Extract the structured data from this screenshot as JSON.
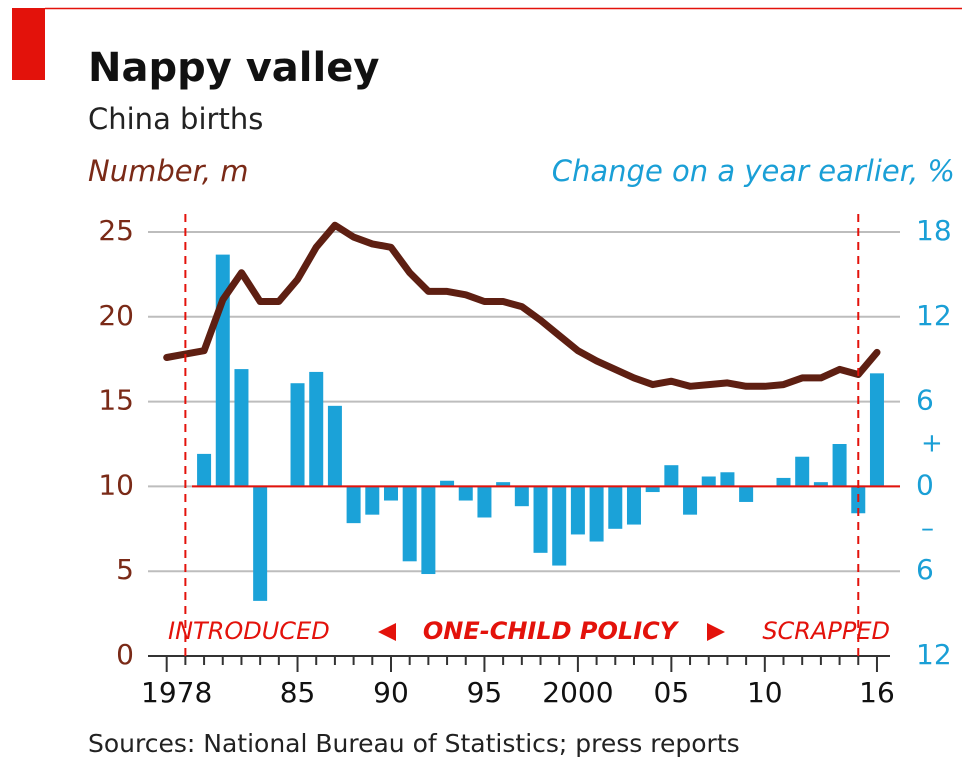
{
  "chart_data": {
    "type": "line_bar",
    "title": "Nappy valley",
    "subtitle": "China births",
    "ylabel": "Number, m",
    "y2label": "Change on a year earlier, %",
    "source": "Sources: National Bureau of Statistics; press reports",
    "x": [
      1978,
      1979,
      1980,
      1981,
      1982,
      1983,
      1984,
      1985,
      1986,
      1987,
      1988,
      1989,
      1990,
      1991,
      1992,
      1993,
      1994,
      1995,
      1996,
      1997,
      1998,
      1999,
      2000,
      2001,
      2002,
      2003,
      2004,
      2005,
      2006,
      2007,
      2008,
      2009,
      2010,
      2011,
      2012,
      2013,
      2014,
      2015,
      2016
    ],
    "series": [
      {
        "type": "line",
        "color": "#5e1f12",
        "values": [
          17.6,
          17.8,
          18.0,
          21.0,
          22.6,
          20.9,
          20.9,
          22.2,
          24.1,
          25.4,
          24.7,
          24.3,
          24.1,
          22.6,
          21.5,
          21.5,
          21.3,
          20.9,
          20.9,
          20.6,
          19.8,
          18.9,
          18.0,
          17.4,
          16.9,
          16.4,
          16.0,
          16.2,
          15.9,
          16.0,
          16.1,
          15.9,
          15.9,
          16.0,
          16.4,
          16.4,
          16.9,
          16.6,
          17.9
        ]
      },
      {
        "type": "bar",
        "axis": "y2",
        "color": "#1ba2d8",
        "values": [
          null,
          null,
          2.3,
          16.4,
          8.3,
          -8.1,
          null,
          7.3,
          8.1,
          5.7,
          -2.6,
          -2.0,
          -1.0,
          -5.3,
          -6.2,
          0.4,
          -1.0,
          -2.2,
          0.3,
          -1.4,
          -4.7,
          -5.6,
          -3.4,
          -3.9,
          -3.0,
          -2.7,
          -0.4,
          1.5,
          -2.0,
          0.7,
          1.0,
          -1.1,
          null,
          0.6,
          2.1,
          0.3,
          3.0,
          -1.9,
          8.0
        ]
      }
    ],
    "xlim": [
      1977,
      2017.5
    ],
    "xticks": [
      1978,
      {
        "value": 1985,
        "label": "85"
      },
      {
        "value": 1990,
        "label": "90"
      },
      {
        "value": 1995,
        "label": "95"
      },
      2000,
      {
        "value": 2005,
        "label": "05"
      },
      {
        "value": 2010,
        "label": "10"
      },
      {
        "value": 2016,
        "label": "16"
      }
    ],
    "xticks_minor": [
      1979,
      1980,
      1981,
      1982,
      1983,
      1984,
      1986,
      1987,
      1988,
      1989,
      1991,
      1992,
      1993,
      1994,
      1996,
      1997,
      1998,
      1999,
      2001,
      2002,
      2003,
      2004,
      2006,
      2007,
      2008,
      2009,
      2011,
      2012,
      2013,
      2014,
      2015
    ],
    "ylim": [
      0,
      25
    ],
    "yticks": [
      0,
      5,
      10,
      15,
      20,
      25
    ],
    "y2lim": [
      -12,
      18
    ],
    "y2ticks": [
      {
        "value": -12,
        "label": "12"
      },
      {
        "value": -6,
        "label": "6"
      },
      0,
      6,
      12,
      18
    ],
    "y2_sign_labels": [
      "+",
      "–"
    ],
    "grid": true,
    "annotations": [
      {
        "text": "INTRODUCED",
        "x": 1979
      },
      {
        "text": "ONE-CHILD POLICY"
      },
      {
        "text": "SCRAPPED",
        "x": 2015
      }
    ]
  }
}
